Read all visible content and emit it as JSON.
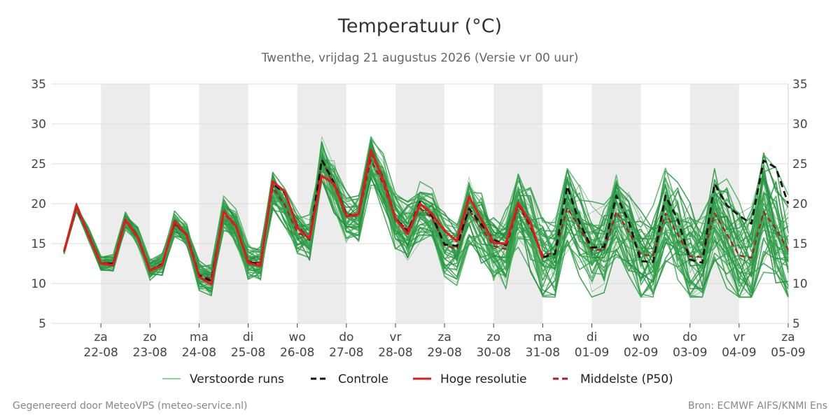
{
  "header": {
    "title": "Temperatuur (°C)",
    "subtitle": "Twenthe, vrijdag 21 augustus 2026 (Versie vr 00 uur)"
  },
  "footer": {
    "left": "Gegenereerd door MeteoVPS (meteo-service.nl)",
    "right": "Bron: ECMWF AIFS/KNMI Ens"
  },
  "legend": [
    {
      "label": "Verstoorde runs",
      "style": "thin",
      "color": "#2e9e44"
    },
    {
      "label": "Controle",
      "style": "dashed",
      "color": "#111111"
    },
    {
      "label": "Hoge resolutie",
      "style": "solid",
      "color": "#e31a1c"
    },
    {
      "label": "Middelste (P50)",
      "style": "dashed",
      "color": "#b2182b"
    }
  ],
  "chart_data": {
    "type": "line",
    "ylim": [
      5,
      35
    ],
    "yticks": [
      5,
      10,
      15,
      20,
      25,
      30,
      35
    ],
    "grid": true,
    "legend_position": "bottom",
    "x_start": "2026-08-21",
    "x_end": "2026-09-05",
    "weekend_shading": [
      [
        "2026-08-22",
        "2026-08-23"
      ],
      [
        "2026-08-24",
        "2026-08-25"
      ],
      [
        "2026-08-26",
        "2026-08-27"
      ],
      [
        "2026-08-28",
        "2026-08-29"
      ],
      [
        "2026-08-30",
        "2026-08-31"
      ],
      [
        "2026-09-01",
        "2026-09-02"
      ],
      [
        "2026-09-03",
        "2026-09-04"
      ]
    ],
    "day_ticks": [
      {
        "day": "za",
        "date": "22-08"
      },
      {
        "day": "zo",
        "date": "23-08"
      },
      {
        "day": "ma",
        "date": "24-08"
      },
      {
        "day": "di",
        "date": "25-08"
      },
      {
        "day": "wo",
        "date": "26-08"
      },
      {
        "day": "do",
        "date": "27-08"
      },
      {
        "day": "vr",
        "date": "28-08"
      },
      {
        "day": "za",
        "date": "29-08"
      },
      {
        "day": "zo",
        "date": "30-08"
      },
      {
        "day": "ma",
        "date": "31-08"
      },
      {
        "day": "di",
        "date": "01-09"
      },
      {
        "day": "wo",
        "date": "02-09"
      },
      {
        "day": "do",
        "date": "03-09"
      },
      {
        "day": "vr",
        "date": "04-09"
      },
      {
        "day": "za",
        "date": "05-09"
      }
    ],
    "time_points_per_day": 4,
    "series": [
      {
        "name": "Hoge resolutie",
        "color": "#e31a1c",
        "values": [
          14.0,
          19.8,
          16.0,
          12.5,
          12.3,
          18.0,
          15.8,
          11.6,
          12.3,
          17.8,
          16.0,
          10.8,
          9.9,
          19.0,
          17.2,
          12.6,
          12.2,
          22.8,
          21.5,
          17.0,
          15.6,
          23.5,
          22.5,
          18.4,
          18.7,
          26.7,
          23.0,
          18.1,
          16.2,
          20.0,
          18.7,
          16.6,
          15.3,
          20.9,
          18.0,
          15.1,
          15.0,
          20.1,
          17.6,
          13.2
        ]
      },
      {
        "name": "Controle",
        "color": "#111111",
        "values": [
          14.0,
          19.6,
          16.0,
          12.5,
          12.5,
          18.0,
          15.9,
          11.6,
          12.4,
          17.6,
          16.1,
          11.0,
          10.3,
          19.0,
          17.2,
          12.7,
          12.4,
          22.5,
          21.3,
          17.2,
          15.5,
          25.5,
          22.6,
          18.6,
          18.6,
          26.5,
          23.2,
          18.2,
          16.5,
          20.2,
          18.4,
          14.9,
          14.7,
          19.4,
          17.4,
          15.5,
          14.8,
          20.0,
          17.4,
          13.3,
          13.7,
          22.2,
          17.6,
          14.5,
          14.6,
          21.0,
          17.8,
          12.8,
          12.7,
          21.0,
          18.0,
          13.0,
          12.6,
          22.5,
          19.8,
          18.5,
          17.5,
          25.4,
          24.5,
          20.0
        ]
      },
      {
        "name": "Middelste (P50)",
        "color": "#b2182b",
        "values": [
          14.0,
          19.5,
          16.2,
          12.6,
          12.6,
          17.8,
          15.9,
          11.7,
          12.5,
          17.4,
          16.0,
          11.1,
          10.6,
          18.8,
          17.1,
          12.8,
          12.6,
          22.0,
          19.8,
          16.4,
          15.6,
          25.5,
          22.2,
          18.4,
          18.5,
          25.5,
          22.5,
          18.0,
          16.8,
          19.4,
          18.2,
          14.8,
          14.3,
          19.2,
          17.0,
          14.7,
          14.3,
          19.8,
          17.0,
          13.6,
          13.8,
          19.5,
          17.0,
          14.2,
          14.2,
          19.0,
          16.5,
          13.6,
          13.5,
          18.8,
          16.2,
          13.4,
          13.3,
          18.8,
          16.2,
          13.5,
          13.2,
          19.0,
          16.8,
          14.2
        ]
      }
    ]
  }
}
